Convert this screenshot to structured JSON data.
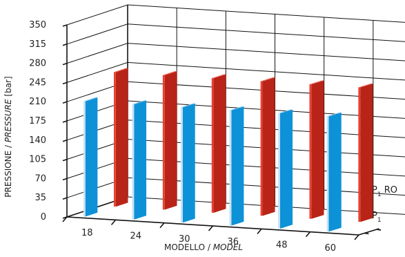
{
  "chart_data": {
    "type": "bar",
    "categories": [
      "18",
      "24",
      "30",
      "36",
      "48",
      "60"
    ],
    "series": [
      {
        "name": "P1",
        "name_main": "P",
        "name_sub": "1",
        "values": [
          210,
          210,
          210,
          210,
          210,
          210
        ],
        "colors": {
          "front": "#c8e2f7",
          "side": "#0d92d8",
          "top": "#8ac7ee"
        }
      },
      {
        "name": "P1 RO",
        "name_main": "P",
        "name_sub": "1",
        "name_suffix": " RO",
        "values": [
          245,
          245,
          245,
          245,
          245,
          245
        ],
        "colors": {
          "front": "#e8402f",
          "side": "#b92418",
          "top": "#f05f4d"
        }
      }
    ],
    "yticks": [
      0,
      35,
      70,
      105,
      140,
      175,
      210,
      245,
      280,
      315,
      350
    ],
    "ylim": [
      0,
      350
    ],
    "ylabel": {
      "normal": "PRESSIONE / ",
      "italic": "PRESSURE",
      "unit": " [bar]"
    },
    "xlabel": {
      "normal": "MODELLO / ",
      "italic": "MODEL"
    }
  }
}
